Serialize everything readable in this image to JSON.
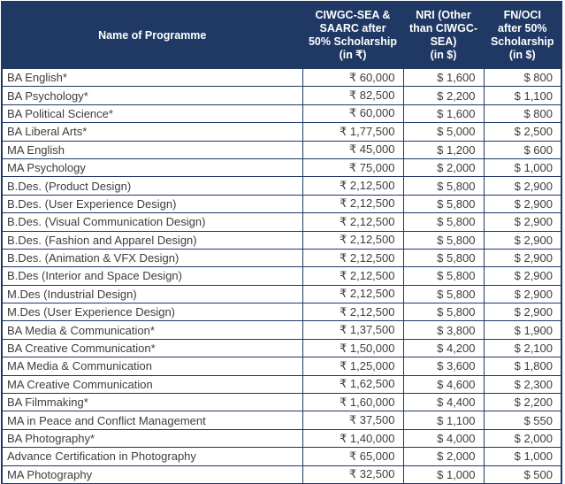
{
  "colors": {
    "header_background": "#1f3864",
    "header_text": "#ffffff",
    "border": "#1f3864",
    "body_text": "#3d3d3d",
    "row_background": "#ffffff"
  },
  "table": {
    "columns": [
      {
        "label": "Name of Programme",
        "lines": [
          "Name of Programme"
        ]
      },
      {
        "label": "CIWGC-SEA & SAARC after 50% Scholarship (in ₹)",
        "lines": [
          "CIWGC-SEA &",
          "SAARC after",
          "50% Scholarship",
          "(in ₹)"
        ]
      },
      {
        "label": "NRI (Other than CIWGC-SEA) (in $)",
        "lines": [
          "NRI (Other",
          "than CIWGC-",
          "SEA)",
          "(in $)"
        ]
      },
      {
        "label": "FN/OCI after 50% Scholarship (in $)",
        "lines": [
          "FN/OCI",
          "after 50%",
          "Scholarship",
          "(in $)"
        ]
      }
    ],
    "rows": [
      [
        "BA English*",
        "₹ 60,000",
        "$ 1,600",
        "$ 800"
      ],
      [
        "BA Psychology*",
        "₹ 82,500",
        "$ 2,200",
        "$ 1,100"
      ],
      [
        "BA Political Science*",
        "₹ 60,000",
        "$ 1,600",
        "$ 800"
      ],
      [
        "BA Liberal Arts*",
        "₹ 1,77,500",
        "$ 5,000",
        "$ 2,500"
      ],
      [
        "MA English",
        "₹ 45,000",
        "$ 1,200",
        "$ 600"
      ],
      [
        "MA Psychology",
        "₹ 75,000",
        "$ 2,000",
        "$ 1,000"
      ],
      [
        "B.Des. (Product Design)",
        "₹ 2,12,500",
        "$ 5,800",
        "$ 2,900"
      ],
      [
        "B.Des. (User Experience Design)",
        "₹ 2,12,500",
        "$ 5,800",
        "$ 2,900"
      ],
      [
        "B.Des. (Visual Communication Design)",
        "₹ 2,12,500",
        "$ 5,800",
        "$ 2,900"
      ],
      [
        "B.Des. (Fashion and Apparel Design)",
        "₹ 2,12,500",
        "$ 5,800",
        "$ 2,900"
      ],
      [
        "B.Des. (Animation & VFX Design)",
        "₹ 2,12,500",
        "$ 5,800",
        "$ 2,900"
      ],
      [
        "B.Des (Interior and Space Design)",
        "₹ 2,12,500",
        "$ 5,800",
        "$ 2,900"
      ],
      [
        "M.Des (Industrial Design)",
        "₹ 2,12,500",
        "$ 5,800",
        "$ 2,900"
      ],
      [
        "M.Des (User Experience Design)",
        "₹ 2,12,500",
        "$ 5,800",
        "$ 2,900"
      ],
      [
        "BA Media & Communication*",
        "₹ 1,37,500",
        "$ 3,800",
        "$ 1,900"
      ],
      [
        "BA Creative Communication*",
        "₹ 1,50,000",
        "$ 4,200",
        "$ 2,100"
      ],
      [
        "MA Media & Communication",
        "₹ 1,25,000",
        "$ 3,600",
        "$ 1,800"
      ],
      [
        "MA Creative Communication",
        "₹ 1,62,500",
        "$ 4,600",
        "$ 2,300"
      ],
      [
        "BA Filmmaking*",
        "₹ 1,60,000",
        "$ 4,400",
        "$ 2,200"
      ],
      [
        "MA in Peace and Conflict Management",
        "₹ 37,500",
        "$ 1,100",
        "$ 550"
      ],
      [
        "BA Photography*",
        "₹ 1,40,000",
        "$ 4,000",
        "$ 2,000"
      ],
      [
        "Advance Certification in Photography",
        "₹ 65,000",
        "$ 2,000",
        "$ 1,000"
      ],
      [
        "MA Photography",
        "₹ 32,500",
        "$ 1,000",
        "$ 500"
      ]
    ]
  }
}
